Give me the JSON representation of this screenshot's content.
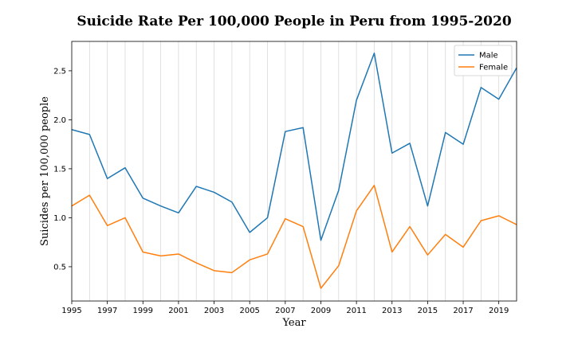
{
  "chart_data": {
    "type": "line",
    "title": "Suicide Rate Per 100,000 People in Peru from 1995-2020",
    "xlabel": "Year",
    "ylabel": "Suicides per 100,000 people",
    "x": [
      1995,
      1996,
      1997,
      1998,
      1999,
      2000,
      2001,
      2002,
      2003,
      2004,
      2005,
      2006,
      2007,
      2008,
      2009,
      2010,
      2011,
      2012,
      2013,
      2014,
      2015,
      2016,
      2017,
      2018,
      2019,
      2020
    ],
    "xlim": [
      1995,
      2020
    ],
    "ylim": [
      0.15,
      2.8
    ],
    "x_ticks": [
      "1995",
      "1997",
      "1999",
      "2001",
      "2003",
      "2005",
      "2007",
      "2009",
      "2011",
      "2013",
      "2015",
      "2017",
      "2019"
    ],
    "y_ticks": [
      "0.5",
      "1.0",
      "1.5",
      "2.0",
      "2.5"
    ],
    "grid": "vertical",
    "legend_position": "top-right",
    "series": [
      {
        "name": "Male",
        "color": "#1f77b4",
        "values": [
          1.9,
          1.85,
          1.4,
          1.51,
          1.2,
          1.12,
          1.05,
          1.32,
          1.26,
          1.16,
          0.85,
          1.0,
          1.88,
          1.92,
          0.77,
          1.28,
          2.2,
          2.68,
          1.66,
          1.76,
          1.12,
          1.87,
          1.75,
          2.33,
          2.21,
          2.53
        ]
      },
      {
        "name": "Female",
        "color": "#ff7f0e",
        "values": [
          1.12,
          1.23,
          0.92,
          1.0,
          0.65,
          0.61,
          0.63,
          0.54,
          0.46,
          0.44,
          0.57,
          0.63,
          0.99,
          0.91,
          0.28,
          0.51,
          1.07,
          1.33,
          0.65,
          0.91,
          0.62,
          0.83,
          0.7,
          0.97,
          1.02,
          0.93
        ]
      }
    ]
  }
}
